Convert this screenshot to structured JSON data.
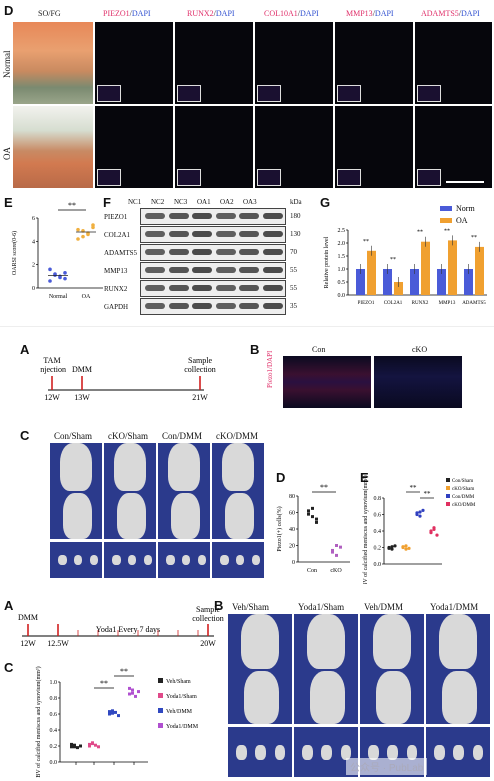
{
  "figure1": {
    "panel_labels": {
      "D": "D",
      "E": "E",
      "F": "F",
      "G": "G"
    },
    "stain_header": "SO/FG",
    "marker_headers": [
      {
        "marker": "PIEZO1",
        "sep": "/",
        "dapi": "DAPI"
      },
      {
        "marker": "RUNX2",
        "sep": "/",
        "dapi": "DAPI"
      },
      {
        "marker": "COL10A1",
        "sep": "/",
        "dapi": "DAPI"
      },
      {
        "marker": "MMP13",
        "sep": "/",
        "dapi": "DAPI"
      },
      {
        "marker": "ADAMTS5",
        "sep": "/",
        "dapi": "DAPI"
      }
    ],
    "row_labels": [
      "Normal",
      "OA"
    ],
    "colors": {
      "marker": "#e0306a",
      "dapi": "#3050d0",
      "norm": "#4a5bd8",
      "oa": "#f0a030",
      "point_oa": "#f0b040",
      "point_norm": "#4a5bd8"
    },
    "blot": {
      "lanes": [
        "NC1",
        "NC2",
        "NC3",
        "OA1",
        "OA2",
        "OA3"
      ],
      "unit": "kDa",
      "proteins": [
        "PIEZO1",
        "COL2A1",
        "ADAMTS5",
        "MMP13",
        "RUNX2",
        "GAPDH"
      ],
      "kda": [
        "180",
        "130",
        "70",
        "55",
        "55",
        "35"
      ]
    }
  },
  "chart_data": [
    {
      "type": "scatter",
      "ylabel": "OARSI score(0-6)",
      "categories": [
        "Normal",
        "OA"
      ],
      "yticks": [
        "0",
        "2",
        "4",
        "6"
      ],
      "ylim": [
        0,
        6
      ],
      "significance": "**",
      "series": [
        {
          "values": [
            1.6,
            1.2,
            1.0,
            0.8,
            0.6,
            1.1,
            0.9,
            1.3
          ]
        },
        {
          "values": [
            5.0,
            4.4,
            4.6,
            5.4,
            4.2,
            4.9,
            4.7,
            5.2
          ]
        }
      ]
    },
    {
      "type": "bar",
      "ylabel": "Relative protein level",
      "categories": [
        "PIEZO1",
        "COL2A1",
        "RUNX2",
        "MMP13",
        "ADAMTS5"
      ],
      "yticks": [
        "0.0",
        "0.5",
        "1.0",
        "1.5",
        "2.0",
        "2.5"
      ],
      "ylim": [
        0,
        2.5
      ],
      "legend": "top-right",
      "significance": [
        "**",
        "**",
        "**",
        "**",
        "**"
      ],
      "series": [
        {
          "name": "Norm",
          "values": [
            1.0,
            1.0,
            1.0,
            1.0,
            1.0
          ]
        },
        {
          "name": "OA",
          "values": [
            1.7,
            0.5,
            2.05,
            2.1,
            1.85
          ]
        }
      ]
    },
    {
      "type": "scatter",
      "ylabel": "Piezo1(+) cells(%)",
      "categories": [
        "Con",
        "cKO"
      ],
      "yticks": [
        "0",
        "20",
        "40",
        "60",
        "80"
      ],
      "ylim": [
        0,
        80
      ],
      "significance": "**",
      "series": [
        {
          "values": [
            62,
            55,
            48,
            58,
            65,
            52
          ]
        },
        {
          "values": [
            14,
            8,
            18,
            12,
            20
          ]
        }
      ]
    },
    {
      "type": "scatter",
      "ylabel": "BV of calcified meniscus and synovium(mm³)",
      "yticks": [
        "0.0",
        "0.2",
        "0.4",
        "0.6",
        "0.8"
      ],
      "ylim": [
        0,
        0.8
      ],
      "legend": "top-right",
      "significance": [
        "**",
        "**"
      ],
      "series": [
        {
          "name": "Con/Sham",
          "values": [
            0.2,
            0.18,
            0.22,
            0.19,
            0.21
          ]
        },
        {
          "name": "cKO/Sham",
          "values": [
            0.2,
            0.22,
            0.19,
            0.21,
            0.18
          ]
        },
        {
          "name": "Con/DMM",
          "values": [
            0.62,
            0.58,
            0.65,
            0.6,
            0.63
          ]
        },
        {
          "name": "cKO/DMM",
          "values": [
            0.38,
            0.42,
            0.35,
            0.4,
            0.44
          ]
        }
      ]
    },
    {
      "type": "scatter",
      "ylabel": "BV of calcified meniscus and synovium(mm³)",
      "yticks": [
        "0.0",
        "0.2",
        "0.4",
        "0.6",
        "0.8",
        "1.0"
      ],
      "ylim": [
        0,
        1.0
      ],
      "legend": "right",
      "significance": [
        "**",
        "**"
      ],
      "series": [
        {
          "name": "Veh/Sham",
          "values": [
            0.19,
            0.21,
            0.18,
            0.2,
            0.22,
            0.19
          ]
        },
        {
          "name": "Yoda1/Sham",
          "values": [
            0.2,
            0.23,
            0.21,
            0.19,
            0.22,
            0.24
          ]
        },
        {
          "name": "Veh/DMM",
          "values": [
            0.6,
            0.64,
            0.62,
            0.58,
            0.63,
            0.61
          ]
        },
        {
          "name": "Yoda1/DMM",
          "values": [
            0.85,
            0.9,
            0.82,
            0.88,
            0.92,
            0.86
          ]
        }
      ]
    }
  ],
  "figure2": {
    "panel_labels": {
      "A": "A",
      "B": "B",
      "C": "C",
      "D": "D",
      "E": "E"
    },
    "timeline": {
      "events": [
        "TAM\ninjection",
        "DMM",
        "Sample\ncollection"
      ],
      "ticks": [
        "12W",
        "13W",
        "21W"
      ]
    },
    "if_header": [
      "Con",
      "cKO"
    ],
    "if_ylabel": "Piezo1/DAPI",
    "ct_groups": [
      "Con/Sham",
      "cKO/Sham",
      "Con/DMM",
      "cKO/DMM"
    ]
  },
  "figure3": {
    "panel_labels": {
      "A": "A",
      "B": "B",
      "C": "C"
    },
    "timeline": {
      "events": [
        "DMM",
        "Yoda1 Every 7 days",
        "Sample\ncollection"
      ],
      "ticks": [
        "12W",
        "12.5W",
        "20W"
      ]
    },
    "ct_groups": [
      "Veh/Sham",
      "Yoda1/Sham",
      "Veh/DMM",
      "Yoda1/DMM"
    ]
  },
  "watermark": "公众号 · PubLab"
}
